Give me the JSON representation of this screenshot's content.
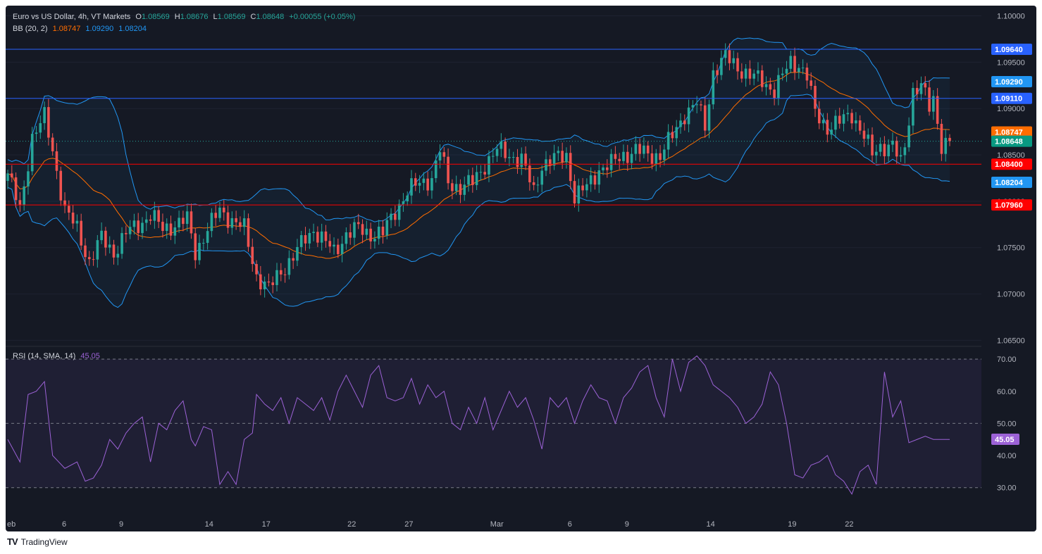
{
  "header": {
    "symbol": "Euro vs US Dollar, 4h, VT Markets",
    "o_label": "O",
    "o": "1.08569",
    "h_label": "H",
    "h": "1.08676",
    "l_label": "L",
    "l": "1.08569",
    "c_label": "C",
    "c": "1.08648",
    "change": "+0.00055 (+0.05%)"
  },
  "bb_legend": {
    "label": "BB (20, 2)",
    "basis": "1.08747",
    "upper": "1.09290",
    "lower": "1.08204"
  },
  "rsi_legend": {
    "label": "RSI (14, SMA, 14)",
    "value": "45.05"
  },
  "footer": {
    "logo": "TV",
    "brand": "TradingView"
  },
  "colors": {
    "background": "#151924",
    "up": "#26a69a",
    "down": "#ef5350",
    "bb_band": "#2196f3",
    "bb_basis": "#ff6d00",
    "rsi": "#9c62d6",
    "blue_line": "#2962ff",
    "red_line": "#ff0000"
  },
  "chart_data": [
    {
      "type": "candlestick",
      "title": "Euro vs US Dollar, 4h, VT Markets",
      "x_ticks": [
        "eb",
        "6",
        "9",
        "14",
        "17",
        "22",
        "27",
        "Mar",
        "6",
        "9",
        "14",
        "19",
        "22"
      ],
      "y_ticks": [
        "1.10000",
        "1.09500",
        "1.09000",
        "1.08500",
        "1.08000",
        "1.07500",
        "1.07000",
        "1.06500"
      ],
      "ylim": [
        1.0645,
        1.1008
      ],
      "horizontal_lines": [
        {
          "value": 1.0964,
          "label": "1.09640",
          "color": "#2962ff"
        },
        {
          "value": 1.0911,
          "label": "1.09110",
          "color": "#2962ff"
        },
        {
          "value": 1.084,
          "label": "1.08400",
          "color": "#ff0000"
        },
        {
          "value": 1.0796,
          "label": "1.07960",
          "color": "#ff0000"
        }
      ],
      "price_tags": [
        {
          "label": "1.09640",
          "value": 1.0964,
          "color": "#2962ff"
        },
        {
          "label": "1.09290",
          "value": 1.0929,
          "color": "#2196f3"
        },
        {
          "label": "1.09110",
          "value": 1.0911,
          "color": "#2962ff"
        },
        {
          "label": "1.08747",
          "value": 1.08747,
          "color": "#ff6d00"
        },
        {
          "label": "1.08648",
          "value": 1.08648,
          "color": "#089981"
        },
        {
          "label": "1.08400",
          "value": 1.084,
          "color": "#ff0000"
        },
        {
          "label": "1.08204",
          "value": 1.08204,
          "color": "#2196f3"
        },
        {
          "label": "1.07960",
          "value": 1.0796,
          "color": "#ff0000"
        }
      ],
      "close_anchors": [
        [
          0,
          1.083
        ],
        [
          3,
          1.079
        ],
        [
          6,
          1.087
        ],
        [
          9,
          1.089
        ],
        [
          11,
          1.0855
        ],
        [
          14,
          1.079
        ],
        [
          17,
          1.077
        ],
        [
          20,
          1.0735
        ],
        [
          23,
          1.076
        ],
        [
          26,
          1.0745
        ],
        [
          29,
          1.0765
        ],
        [
          32,
          1.0775
        ],
        [
          35,
          1.0785
        ],
        [
          38,
          1.077
        ],
        [
          41,
          1.0775
        ],
        [
          44,
          1.078
        ],
        [
          46,
          1.0745
        ],
        [
          49,
          1.077
        ],
        [
          52,
          1.079
        ],
        [
          55,
          1.078
        ],
        [
          58,
          1.077
        ],
        [
          61,
          1.072
        ],
        [
          64,
          1.0705
        ],
        [
          67,
          1.0725
        ],
        [
          70,
          1.074
        ],
        [
          73,
          1.076
        ],
        [
          75,
          1.077
        ],
        [
          78,
          1.0755
        ],
        [
          80,
          1.0745
        ],
        [
          83,
          1.0765
        ],
        [
          86,
          1.077
        ],
        [
          89,
          1.0765
        ],
        [
          92,
          1.0765
        ],
        [
          95,
          1.079
        ],
        [
          98,
          1.081
        ],
        [
          101,
          1.082
        ],
        [
          104,
          1.0825
        ],
        [
          106,
          1.0855
        ],
        [
          108,
          1.082
        ],
        [
          111,
          1.0815
        ],
        [
          114,
          1.082
        ],
        [
          117,
          1.084
        ],
        [
          120,
          1.0855
        ],
        [
          123,
          1.085
        ],
        [
          126,
          1.0845
        ],
        [
          129,
          1.081
        ],
        [
          131,
          1.084
        ],
        [
          134,
          1.0845
        ],
        [
          137,
          1.085
        ],
        [
          139,
          1.0805
        ],
        [
          142,
          1.0815
        ],
        [
          145,
          1.0835
        ],
        [
          148,
          1.084
        ],
        [
          151,
          1.085
        ],
        [
          154,
          1.0855
        ],
        [
          157,
          1.085
        ],
        [
          160,
          1.085
        ],
        [
          163,
          1.087
        ],
        [
          166,
          1.0895
        ],
        [
          169,
          1.0905
        ],
        [
          171,
          1.088
        ],
        [
          173,
          1.094
        ],
        [
          176,
          1.0955
        ],
        [
          179,
          1.0945
        ],
        [
          182,
          1.0935
        ],
        [
          185,
          1.093
        ],
        [
          188,
          1.092
        ],
        [
          190,
          1.0935
        ],
        [
          192,
          1.095
        ],
        [
          194,
          1.0948
        ],
        [
          196,
          1.0935
        ],
        [
          198,
          1.0895
        ],
        [
          201,
          1.088
        ],
        [
          204,
          1.0885
        ],
        [
          207,
          1.0895
        ],
        [
          210,
          1.087
        ],
        [
          212,
          1.085
        ],
        [
          214,
          1.086
        ],
        [
          217,
          1.086
        ],
        [
          219,
          1.084
        ],
        [
          220,
          1.086
        ],
        [
          222,
          1.092
        ],
        [
          224,
          1.0925
        ],
        [
          226,
          1.09
        ],
        [
          227,
          1.091
        ],
        [
          229,
          1.0862
        ],
        [
          231,
          1.0865
        ]
      ],
      "series": [
        {
          "name": "BB (20, 2) basis",
          "value": 1.08747
        },
        {
          "name": "BB (20, 2) upper",
          "value": 1.0929
        },
        {
          "name": "BB (20, 2) lower",
          "value": 1.08204
        }
      ],
      "candle_count": 232
    },
    {
      "type": "line",
      "title": "RSI (14, SMA, 14)",
      "y_ticks": [
        "70.00",
        "60.00",
        "50.00",
        "40.00",
        "30.00"
      ],
      "ylim": [
        26,
        72
      ],
      "levels": [
        70,
        50,
        30
      ],
      "value_tag": {
        "label": "45.05",
        "value": 45.05,
        "color": "#9c62d6"
      },
      "x": [
        0,
        3,
        5,
        7,
        9,
        11,
        14,
        17,
        19,
        21,
        23,
        25,
        27,
        29,
        31,
        33,
        35,
        37,
        39,
        41,
        43,
        45,
        46,
        48,
        50,
        52,
        54,
        56,
        58,
        60,
        61,
        63,
        65,
        67,
        69,
        71,
        73,
        75,
        77,
        79,
        81,
        83,
        85,
        87,
        89,
        91,
        93,
        95,
        97,
        99,
        101,
        103,
        105,
        107,
        109,
        111,
        113,
        115,
        117,
        119,
        121,
        123,
        125,
        127,
        129,
        131,
        133,
        135,
        137,
        139,
        141,
        143,
        145,
        147,
        149,
        151,
        153,
        155,
        157,
        159,
        161,
        163,
        165,
        167,
        169,
        171,
        173,
        175,
        177,
        179,
        181,
        183,
        185,
        187,
        189,
        191,
        193,
        195,
        197,
        199,
        201,
        203,
        205,
        207,
        209,
        211,
        213,
        215,
        217,
        219,
        221,
        223,
        225,
        227,
        229,
        231
      ],
      "values": [
        45,
        38,
        59,
        60,
        63,
        40,
        36,
        38,
        32,
        33,
        37,
        45,
        42,
        47,
        50,
        52,
        38,
        50,
        48,
        54,
        57,
        45,
        43,
        49,
        48,
        31,
        35,
        31,
        45,
        47,
        59,
        56,
        54,
        58,
        50,
        58,
        56,
        54,
        58,
        51,
        60,
        65,
        60,
        55,
        65,
        68,
        58,
        57,
        58,
        64,
        56,
        62,
        58,
        60,
        50,
        48,
        55,
        50,
        58,
        48,
        54,
        60,
        55,
        58,
        51,
        42,
        58,
        55,
        58,
        50,
        57,
        62,
        58,
        57,
        50,
        58,
        61,
        66,
        68,
        58,
        52,
        70,
        60,
        69,
        71,
        68,
        62,
        60,
        58,
        55,
        50,
        52,
        56,
        66,
        62,
        50,
        34,
        33,
        37,
        38,
        40,
        34,
        32,
        28,
        35,
        37,
        31,
        66,
        52,
        57,
        44,
        45,
        46,
        45,
        45,
        45
      ],
      "last_value": 45.05
    }
  ]
}
